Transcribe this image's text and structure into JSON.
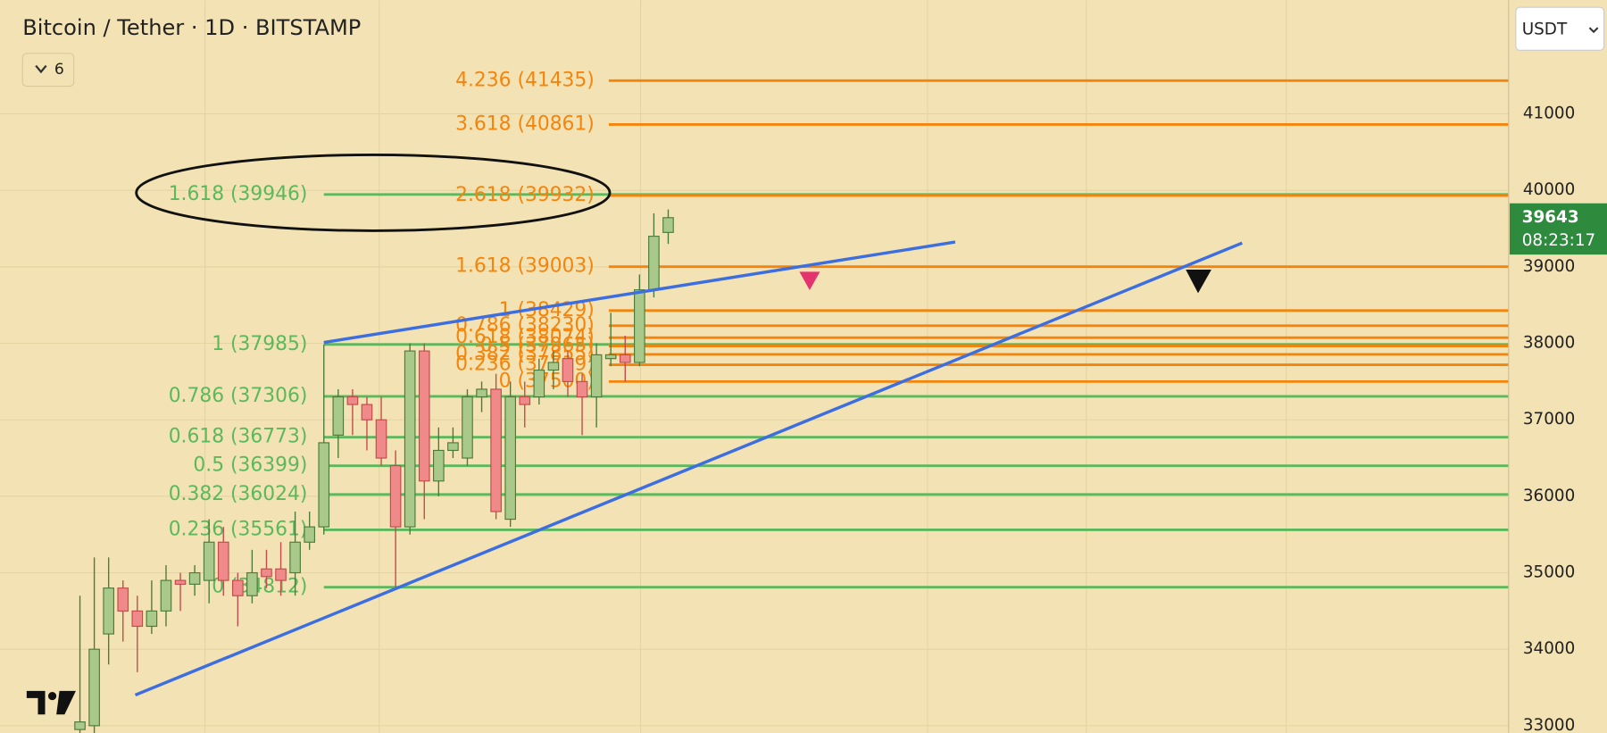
{
  "chart_data": {
    "type": "candlestick",
    "title": "Bitcoin / Tether · 1D · BITSTAMP",
    "currency": "USDT",
    "indicator_count": "6",
    "ylim": [
      32906,
      42488
    ],
    "yticks": [
      33000,
      34000,
      35000,
      36000,
      37000,
      38000,
      39000,
      40000,
      41000
    ],
    "grid": true,
    "up_color": "#a9c98a",
    "down_color": "#f08a8a",
    "categories": [
      null,
      null,
      null,
      null,
      null,
      null,
      null,
      null,
      null,
      null,
      null,
      null,
      null,
      null,
      null,
      null,
      null,
      null,
      null,
      null,
      null,
      null,
      null,
      null,
      null,
      null,
      null,
      null,
      null,
      null,
      null,
      null,
      null,
      null,
      null,
      null,
      null,
      null,
      null,
      null,
      null,
      null
    ],
    "open": [
      32950,
      33000,
      34200,
      34800,
      34500,
      34300,
      34500,
      34900,
      34850,
      34900,
      35400,
      34900,
      34700,
      35050,
      35050,
      35000,
      35400,
      35600,
      36800,
      37300,
      37200,
      37000,
      36400,
      35600,
      37900,
      36200,
      36600,
      36500,
      37300,
      37400,
      35700,
      37300,
      37300,
      37650,
      37800,
      37500,
      37300,
      37800,
      37850,
      37750,
      38700,
      39450
    ],
    "high": [
      34700,
      35200,
      35200,
      34900,
      34700,
      34900,
      35100,
      35000,
      35100,
      35700,
      35600,
      35000,
      35300,
      35300,
      35400,
      35800,
      35800,
      37985,
      37400,
      37400,
      37300,
      37300,
      36600,
      38000,
      38000,
      36900,
      36900,
      37400,
      37500,
      37600,
      37500,
      37500,
      37800,
      37900,
      37900,
      37600,
      38000,
      38400,
      38100,
      38900,
      39700,
      39750
    ],
    "low": [
      32900,
      32900,
      33800,
      34100,
      33700,
      34200,
      34300,
      34500,
      34700,
      34600,
      34700,
      34300,
      34600,
      34800,
      34700,
      34700,
      35300,
      35500,
      36500,
      36800,
      36600,
      36400,
      34800,
      35500,
      35700,
      36000,
      36500,
      36400,
      37100,
      35700,
      35600,
      36900,
      37200,
      37400,
      37300,
      36800,
      36900,
      37700,
      37500,
      37700,
      38600,
      39300
    ],
    "close": [
      33050,
      34000,
      34800,
      34500,
      34300,
      34500,
      34900,
      34850,
      35000,
      35400,
      34900,
      34700,
      35000,
      34950,
      34900,
      35400,
      35600,
      36700,
      37300,
      37200,
      37000,
      36500,
      35600,
      37900,
      36200,
      36600,
      36700,
      37300,
      37400,
      35800,
      37300,
      37200,
      37650,
      37750,
      37500,
      37300,
      37850,
      37850,
      37750,
      38700,
      39400,
      39643
    ],
    "fib_green": {
      "color": "#5cb85c",
      "levels": [
        {
          "label": "1.618 (39946)",
          "price": 39946
        },
        {
          "label": "1 (37985)",
          "price": 37985
        },
        {
          "label": "0.786 (37306)",
          "price": 37306
        },
        {
          "label": "0.618 (36773)",
          "price": 36773
        },
        {
          "label": "0.5 (36399)",
          "price": 36399
        },
        {
          "label": "0.382 (36024)",
          "price": 36024
        },
        {
          "label": "0.236 (35561)",
          "price": 35561
        },
        {
          "label": "0 (34812)",
          "price": 34812
        }
      ]
    },
    "fib_orange": {
      "color": "#f5840c",
      "levels": [
        {
          "label": "4.236 (41435)",
          "price": 41435
        },
        {
          "label": "3.618 (40861)",
          "price": 40861
        },
        {
          "label": "2.618 (39932)",
          "price": 39932
        },
        {
          "label": "1.618 (39003)",
          "price": 39003
        },
        {
          "label": "1 (38429)",
          "price": 38429
        },
        {
          "label": "0.786 (38230)",
          "price": 38230
        },
        {
          "label": "0.618 (38074)",
          "price": 38074
        },
        {
          "label": "0.5 (37965)",
          "price": 37965
        },
        {
          "label": "0.382 (37855)",
          "price": 37855
        },
        {
          "label": "0.236 (37719)",
          "price": 37719
        },
        {
          "label": "0 (37500)",
          "price": 37500
        }
      ]
    },
    "last_price": 39643,
    "countdown": "08:23:17"
  }
}
